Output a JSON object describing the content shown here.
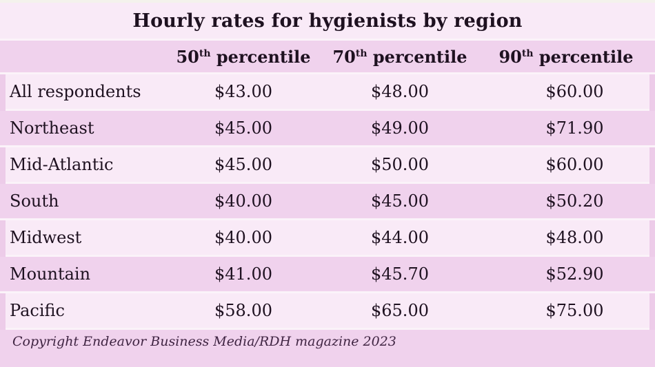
{
  "title": "Hourly rates for hygienists by region",
  "table": {
    "columns": [
      {
        "num": "50",
        "sup": "th",
        "rest": " percentile"
      },
      {
        "num": "70",
        "sup": "th",
        "rest": " percentile"
      },
      {
        "num": "90",
        "sup": "th",
        "rest": " percentile"
      }
    ],
    "rows": [
      {
        "region": "All respondents",
        "p50": "$43.00",
        "p70": "$48.00",
        "p90": "$60.00"
      },
      {
        "region": "Northeast",
        "p50": "$45.00",
        "p70": "$49.00",
        "p90": "$71.90"
      },
      {
        "region": "Mid-Atlantic",
        "p50": "$45.00",
        "p70": "$50.00",
        "p90": "$60.00"
      },
      {
        "region": "South",
        "p50": "$40.00",
        "p70": "$45.00",
        "p90": "$50.20"
      },
      {
        "region": "Midwest",
        "p50": "$40.00",
        "p70": "$44.00",
        "p90": "$48.00"
      },
      {
        "region": "Mountain",
        "p50": "$41.00",
        "p70": "$45.70",
        "p90": "$52.90"
      },
      {
        "region": "Pacific",
        "p50": "$58.00",
        "p70": "$65.00",
        "p90": "$75.00"
      }
    ]
  },
  "footer": {
    "copyright": "Copyright Endeavor Business Media/RDH magazine 2023"
  },
  "colors": {
    "bg": "#edcce9",
    "dark-row": "#f0d2ed",
    "light-row": "#f9eaf7",
    "gap": "#fbf3f9",
    "top-strip": "#f4f2ec",
    "text": "#1e1120",
    "footer-text": "#3f2442"
  },
  "chart_data": {
    "type": "table",
    "title": "Hourly rates for hygienists by region",
    "columns": [
      "",
      "50th percentile",
      "70th percentile",
      "90th percentile"
    ],
    "rows": [
      [
        "All respondents",
        43.0,
        48.0,
        60.0
      ],
      [
        "Northeast",
        45.0,
        49.0,
        71.9
      ],
      [
        "Mid-Atlantic",
        45.0,
        50.0,
        60.0
      ],
      [
        "South",
        40.0,
        45.0,
        50.2
      ],
      [
        "Midwest",
        40.0,
        44.0,
        48.0
      ],
      [
        "Mountain",
        41.0,
        45.7,
        52.9
      ],
      [
        "Pacific",
        58.0,
        65.0,
        75.0
      ]
    ],
    "note": "Copyright Endeavor Business Media/RDH magazine 2023",
    "layout": {
      "row_striping": true,
      "grid": false,
      "currency": "USD"
    }
  }
}
